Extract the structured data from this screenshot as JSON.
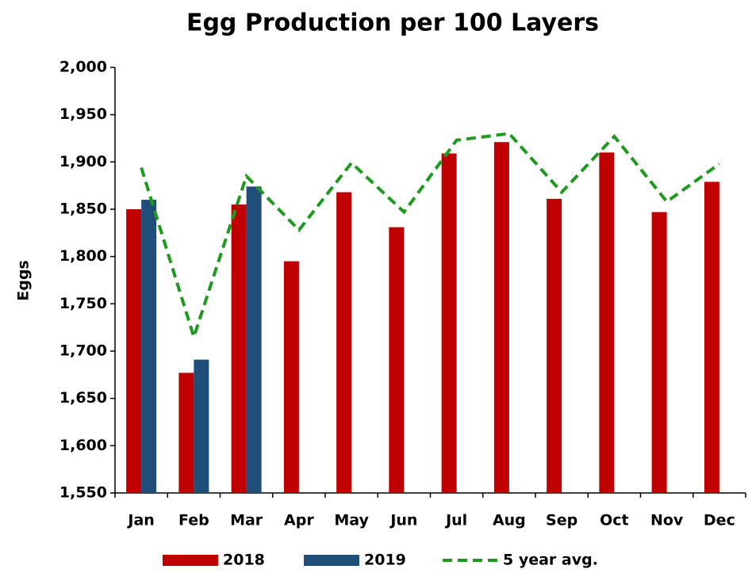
{
  "chart_data": {
    "type": "bar",
    "title": "Egg Production per 100 Layers",
    "y_label": "Eggs",
    "categories": [
      "Jan",
      "Feb",
      "Mar",
      "Apr",
      "May",
      "Jun",
      "Jul",
      "Aug",
      "Sep",
      "Oct",
      "Nov",
      "Dec"
    ],
    "series": [
      {
        "name": "2018",
        "type": "bar",
        "color": "#c00000",
        "values": [
          1850,
          1677,
          1855,
          1795,
          1868,
          1831,
          1909,
          1921,
          1861,
          1910,
          1847,
          1879
        ]
      },
      {
        "name": "2019",
        "type": "bar",
        "color": "#1f4e79",
        "values": [
          1860,
          1691,
          1874,
          null,
          null,
          null,
          null,
          null,
          null,
          null,
          null,
          null
        ]
      },
      {
        "name": "5 year avg.",
        "type": "line",
        "dashed": true,
        "color": "#1e9a1e",
        "values": [
          1894,
          1715,
          1885,
          1828,
          1899,
          1847,
          1923,
          1930,
          1868,
          1927,
          1858,
          1898
        ]
      }
    ],
    "ylim": [
      1550,
      2000
    ],
    "yticks": [
      {
        "value": 1550,
        "label": "1,550"
      },
      {
        "value": 1600,
        "label": "1,600"
      },
      {
        "value": 1650,
        "label": "1,650"
      },
      {
        "value": 1700,
        "label": "1,700"
      },
      {
        "value": 1750,
        "label": "1,750"
      },
      {
        "value": 1800,
        "label": "1,800"
      },
      {
        "value": 1850,
        "label": "1,850"
      },
      {
        "value": 1900,
        "label": "1,900"
      },
      {
        "value": 1950,
        "label": "1,950"
      },
      {
        "value": 2000,
        "label": "2,000"
      }
    ],
    "grid": false,
    "legend": "bottom"
  }
}
